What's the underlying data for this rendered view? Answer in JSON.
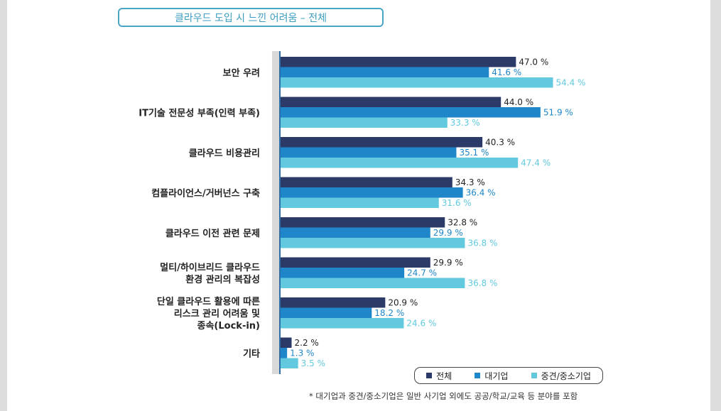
{
  "chart_data": {
    "type": "bar",
    "orientation": "horizontal",
    "title": "클라우드 도입 시 느낀 어려움 – 전체",
    "categories": [
      [
        "보안 우려"
      ],
      [
        "IT기술 전문성 부족(인력 부족)"
      ],
      [
        "클라우드 비용관리"
      ],
      [
        "컴플라이언스/거버넌스 구축"
      ],
      [
        "클라우드 이전 관련 문제"
      ],
      [
        "멀티/하이브리드 클라우드",
        "환경 관리의 복잡성"
      ],
      [
        "단일 클라우드 활용에 따른",
        "리스크 관리 어려움 및",
        "종속(Lock-in)"
      ],
      [
        "기타"
      ]
    ],
    "series": [
      {
        "name": "전체",
        "color": "#2b3a67",
        "label_color": "#222222",
        "values": [
          47.0,
          44.0,
          40.3,
          34.3,
          32.8,
          29.9,
          20.9,
          2.2
        ]
      },
      {
        "name": "대기업",
        "color": "#1f87c9",
        "label_color": "#1f87c9",
        "values": [
          41.6,
          51.9,
          35.1,
          36.4,
          29.9,
          24.7,
          18.2,
          1.3
        ]
      },
      {
        "name": "중견/중소기업",
        "color": "#62c9df",
        "label_color": "#62c9df",
        "values": [
          54.4,
          33.3,
          47.4,
          31.6,
          36.8,
          36.8,
          24.6,
          3.5
        ]
      }
    ],
    "value_suffix": " %",
    "xlim": [
      0,
      62
    ],
    "legend_position": "bottom-right"
  },
  "footnote": "* 대기업과 중견/중소기업은 일반 사기업 외에도 공공/학교/교육 등 분야를 포함"
}
